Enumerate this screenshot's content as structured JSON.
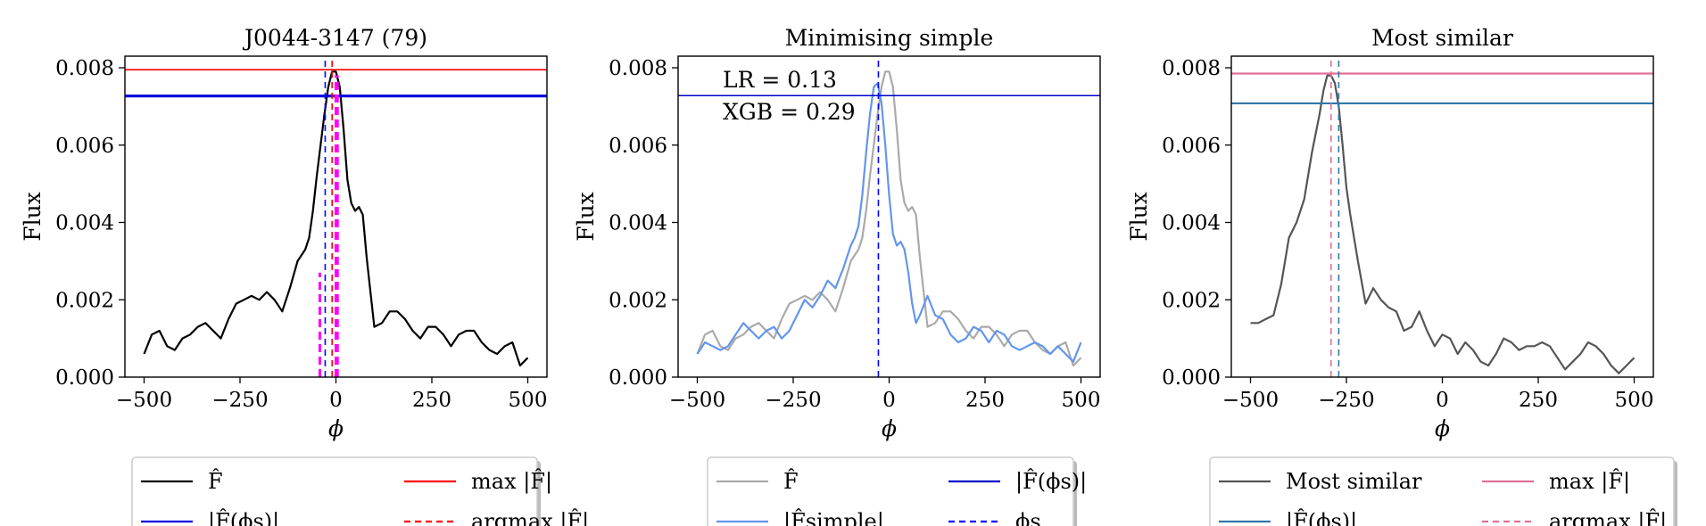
{
  "chart_data": [
    {
      "type": "line",
      "title": "J0044-3147 (79)",
      "xlabel": "ϕ",
      "ylabel": "Flux",
      "xlim": [
        -550,
        550
      ],
      "ylim": [
        0,
        0.0083
      ],
      "xticks": [
        -500,
        -250,
        0,
        250,
        500
      ],
      "xtick_labels": [
        "−500",
        "−250",
        "0",
        "250",
        "500"
      ],
      "yticks": [
        0,
        0.002,
        0.004,
        0.006,
        0.008
      ],
      "ytick_labels": [
        "0.000",
        "0.002",
        "0.004",
        "0.006",
        "0.008"
      ],
      "series": [
        {
          "name": "F̂",
          "color": "#000000",
          "dash": "",
          "x": [
            -500,
            -480,
            -460,
            -440,
            -420,
            -400,
            -380,
            -360,
            -340,
            -320,
            -300,
            -280,
            -260,
            -240,
            -220,
            -200,
            -180,
            -160,
            -140,
            -120,
            -100,
            -80,
            -70,
            -60,
            -50,
            -40,
            -30,
            -20,
            -10,
            0,
            10,
            20,
            30,
            40,
            50,
            60,
            70,
            80,
            100,
            120,
            140,
            160,
            180,
            200,
            220,
            240,
            260,
            280,
            300,
            320,
            340,
            360,
            380,
            400,
            420,
            440,
            460,
            480,
            500
          ],
          "y": [
            0.0006,
            0.0011,
            0.0012,
            0.0008,
            0.0007,
            0.001,
            0.0011,
            0.0013,
            0.0014,
            0.0012,
            0.001,
            0.0015,
            0.0019,
            0.002,
            0.0021,
            0.002,
            0.0022,
            0.002,
            0.0017,
            0.0023,
            0.003,
            0.0033,
            0.0036,
            0.0043,
            0.0052,
            0.006,
            0.0068,
            0.0075,
            0.0079,
            0.0079,
            0.0075,
            0.0064,
            0.0051,
            0.0045,
            0.0043,
            0.0044,
            0.0042,
            0.0031,
            0.0013,
            0.0014,
            0.0017,
            0.0017,
            0.0015,
            0.0012,
            0.001,
            0.0013,
            0.0013,
            0.0011,
            0.0008,
            0.0011,
            0.0012,
            0.0012,
            0.0009,
            0.0007,
            0.0006,
            0.0008,
            0.0009,
            0.0003,
            0.0005
          ]
        }
      ],
      "hlines": [
        {
          "name": "max |F̂|",
          "y": 0.00795,
          "color": "#ff0000",
          "width": 1.6
        },
        {
          "name": "|F̂(ϕs)|",
          "y": 0.00727,
          "color": "#0000dd",
          "width": 3.2
        }
      ],
      "vlines": [
        {
          "x": -28,
          "y0": 0,
          "y1": 0.0083,
          "color": "#0000ff",
          "dash": "7,5"
        },
        {
          "x": -10,
          "y0": 0,
          "y1": 0.0083,
          "color": "#ff0000",
          "dash": "7,5"
        },
        {
          "x": 0,
          "y0": 0,
          "y1": 0.0078,
          "color": "#ff00ff",
          "dash": "9,5",
          "width": 3
        },
        {
          "x": 4,
          "y0": 0,
          "y1": 0.0078,
          "color": "#ff00ff",
          "dash": "9,5",
          "width": 3
        },
        {
          "x": -42,
          "y0": 0,
          "y1": 0.0027,
          "color": "#ff00ff",
          "dash": "9,5",
          "width": 3
        }
      ],
      "legend": {
        "placement": "below",
        "items": [
          {
            "label": "F̂",
            "color": "#000000",
            "dash": ""
          },
          {
            "label": "max |F̂|",
            "color": "#ff0000",
            "dash": ""
          },
          {
            "label": "|F̂(ϕs)|",
            "color": "#0000dd",
            "dash": ""
          },
          {
            "label": "argmax |F̂|",
            "color": "#ff0000",
            "dash": "7,5"
          }
        ]
      }
    },
    {
      "type": "line",
      "title": "Minimising simple",
      "xlabel": "ϕ",
      "ylabel": "Flux",
      "xlim": [
        -550,
        550
      ],
      "ylim": [
        0,
        0.0083
      ],
      "xticks": [
        -500,
        -250,
        0,
        250,
        500
      ],
      "xtick_labels": [
        "−500",
        "−250",
        "0",
        "250",
        "500"
      ],
      "yticks": [
        0,
        0.002,
        0.004,
        0.006,
        0.008
      ],
      "ytick_labels": [
        "0.000",
        "0.002",
        "0.004",
        "0.006",
        "0.008"
      ],
      "annotations": [
        "LR = 0.13",
        "XGB = 0.29"
      ],
      "series": [
        {
          "name": "F̂",
          "color": "#aaaaaa",
          "dash": "",
          "x": [
            -500,
            -480,
            -460,
            -440,
            -420,
            -400,
            -380,
            -360,
            -340,
            -320,
            -300,
            -280,
            -260,
            -240,
            -220,
            -200,
            -180,
            -160,
            -140,
            -120,
            -100,
            -80,
            -70,
            -60,
            -50,
            -40,
            -30,
            -20,
            -10,
            0,
            10,
            20,
            30,
            40,
            50,
            60,
            70,
            80,
            100,
            120,
            140,
            160,
            180,
            200,
            220,
            240,
            260,
            280,
            300,
            320,
            340,
            360,
            380,
            400,
            420,
            440,
            460,
            480,
            500
          ],
          "y": [
            0.0006,
            0.0011,
            0.0012,
            0.0008,
            0.0007,
            0.001,
            0.0011,
            0.0013,
            0.0014,
            0.0012,
            0.001,
            0.0015,
            0.0019,
            0.002,
            0.0021,
            0.002,
            0.0022,
            0.002,
            0.0017,
            0.0023,
            0.003,
            0.0033,
            0.0036,
            0.0043,
            0.0052,
            0.006,
            0.0068,
            0.0075,
            0.0079,
            0.0079,
            0.0075,
            0.0064,
            0.0051,
            0.0045,
            0.0043,
            0.0044,
            0.0042,
            0.0031,
            0.0013,
            0.0014,
            0.0017,
            0.0017,
            0.0015,
            0.0012,
            0.001,
            0.0013,
            0.0013,
            0.0011,
            0.0008,
            0.0011,
            0.0012,
            0.0012,
            0.0009,
            0.0007,
            0.0006,
            0.0008,
            0.0009,
            0.0003,
            0.0005
          ]
        },
        {
          "name": "|F̂simple|",
          "color": "#6495ed",
          "dash": "",
          "x": [
            -500,
            -480,
            -460,
            -440,
            -420,
            -400,
            -380,
            -360,
            -340,
            -320,
            -300,
            -280,
            -260,
            -240,
            -220,
            -200,
            -180,
            -160,
            -140,
            -120,
            -100,
            -90,
            -80,
            -70,
            -60,
            -50,
            -40,
            -30,
            -20,
            -10,
            0,
            10,
            20,
            30,
            40,
            50,
            60,
            70,
            80,
            100,
            120,
            140,
            160,
            180,
            200,
            220,
            240,
            260,
            280,
            300,
            320,
            340,
            360,
            380,
            400,
            420,
            440,
            460,
            480,
            500
          ],
          "y": [
            0.0006,
            0.0009,
            0.0008,
            0.0007,
            0.0008,
            0.0011,
            0.0014,
            0.0012,
            0.001,
            0.0012,
            0.0013,
            0.001,
            0.0012,
            0.0016,
            0.002,
            0.0018,
            0.0021,
            0.0025,
            0.0023,
            0.0028,
            0.0034,
            0.0036,
            0.0039,
            0.0047,
            0.0058,
            0.0068,
            0.0075,
            0.0076,
            0.0071,
            0.006,
            0.0047,
            0.0037,
            0.0034,
            0.0035,
            0.0033,
            0.0027,
            0.0019,
            0.0014,
            0.0016,
            0.0021,
            0.0016,
            0.0015,
            0.0011,
            0.0009,
            0.001,
            0.0013,
            0.0012,
            0.0009,
            0.0012,
            0.0011,
            0.0008,
            0.0007,
            0.0008,
            0.0009,
            0.0008,
            0.0006,
            0.0008,
            0.0006,
            0.0004,
            0.0009
          ]
        }
      ],
      "hlines": [
        {
          "name": "|F̂(ϕs)|",
          "y": 0.00728,
          "color": "#0000cc",
          "width": 1.6
        }
      ],
      "vlines": [
        {
          "name": "ϕs",
          "x": -28,
          "y0": 0,
          "y1": 0.0083,
          "color": "#0000ff",
          "dash": "7,5"
        }
      ],
      "legend": {
        "placement": "below",
        "items": [
          {
            "label": "F̂",
            "color": "#aaaaaa",
            "dash": ""
          },
          {
            "label": "|F̂(ϕs)|",
            "color": "#0000cc",
            "dash": ""
          },
          {
            "label": "|F̂simple|",
            "color": "#6495ed",
            "dash": ""
          },
          {
            "label": "ϕs",
            "color": "#0000ff",
            "dash": "7,5"
          }
        ]
      }
    },
    {
      "type": "line",
      "title": "Most similar",
      "xlabel": "ϕ",
      "ylabel": "Flux",
      "xlim": [
        -550,
        550
      ],
      "ylim": [
        0,
        0.0083
      ],
      "xticks": [
        -500,
        -250,
        0,
        250,
        500
      ],
      "xtick_labels": [
        "−500",
        "−250",
        "0",
        "250",
        "500"
      ],
      "yticks": [
        0,
        0.002,
        0.004,
        0.006,
        0.008
      ],
      "ytick_labels": [
        "0.000",
        "0.002",
        "0.004",
        "0.006",
        "0.008"
      ],
      "series": [
        {
          "name": "Most similar",
          "color": "#555555",
          "dash": "",
          "x": [
            -500,
            -480,
            -460,
            -440,
            -420,
            -400,
            -380,
            -360,
            -340,
            -320,
            -310,
            -300,
            -290,
            -280,
            -270,
            -260,
            -250,
            -240,
            -230,
            -220,
            -200,
            -180,
            -160,
            -140,
            -120,
            -100,
            -80,
            -60,
            -40,
            -20,
            0,
            20,
            40,
            60,
            80,
            100,
            120,
            140,
            160,
            180,
            200,
            220,
            240,
            260,
            280,
            300,
            320,
            340,
            360,
            380,
            400,
            420,
            440,
            460,
            480,
            500
          ],
          "y": [
            0.0014,
            0.0014,
            0.0015,
            0.0016,
            0.0024,
            0.0036,
            0.004,
            0.0046,
            0.0058,
            0.0068,
            0.0074,
            0.0078,
            0.0078,
            0.0076,
            0.007,
            0.006,
            0.0049,
            0.0042,
            0.0036,
            0.003,
            0.0019,
            0.0023,
            0.002,
            0.0018,
            0.0017,
            0.0012,
            0.0013,
            0.0017,
            0.0012,
            0.0008,
            0.0011,
            0.001,
            0.0006,
            0.0009,
            0.0007,
            0.0004,
            0.0003,
            0.0006,
            0.001,
            0.0009,
            0.0007,
            0.0008,
            0.0008,
            0.0009,
            0.0008,
            0.0005,
            0.0002,
            0.0004,
            0.0006,
            0.0009,
            0.0008,
            0.0006,
            0.0003,
            0.0001,
            0.0003,
            0.0005
          ]
        }
      ],
      "hlines": [
        {
          "name": "max |F̂|",
          "y": 0.00785,
          "color": "#e0709a",
          "width": 2.2
        },
        {
          "name": "|F̂(ϕs)|",
          "y": 0.00708,
          "color": "#3377aa",
          "width": 2.2
        }
      ],
      "vlines": [
        {
          "x": -290,
          "y0": 0,
          "y1": 0.0083,
          "color": "#e0709a",
          "dash": "7,5"
        },
        {
          "x": -270,
          "y0": 0,
          "y1": 0.0083,
          "color": "#3377aa",
          "dash": "7,5"
        }
      ],
      "legend": {
        "placement": "below",
        "items": [
          {
            "label": "Most similar",
            "color": "#555555",
            "dash": ""
          },
          {
            "label": "max |F̂|",
            "color": "#e0709a",
            "dash": ""
          },
          {
            "label": "|F̂(ϕs)|",
            "color": "#3377aa",
            "dash": ""
          },
          {
            "label": "argmax |F̂|",
            "color": "#e0709a",
            "dash": "7,5"
          }
        ]
      }
    }
  ]
}
